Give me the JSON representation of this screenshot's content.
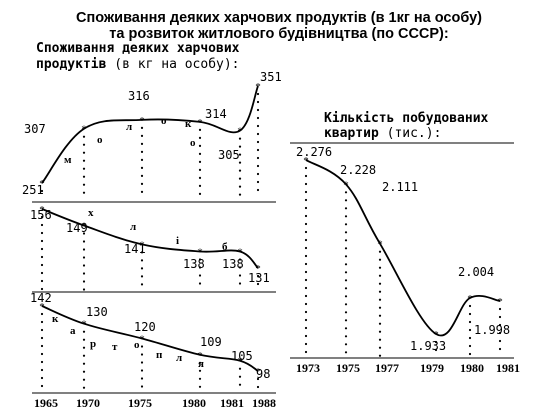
{
  "header": {
    "title_line1": "Споживання деяких харчових продуктів (в 1кг на особу)",
    "title_line2": "та розвиток житлового будівництва (по СССР):"
  },
  "left_panel": {
    "title_line1": "Споживання деяких харчових",
    "title_line2_bold": "продуктів",
    "title_line2_rest": " (в кг на особу):"
  },
  "right_panel": {
    "title_line1": "Кількість побудованих",
    "title_line2_bold": "квартир",
    "title_line2_rest": " (тис.):"
  },
  "colors": {
    "ink": "#000000",
    "background": "#ffffff"
  },
  "chart_data": [
    {
      "type": "line",
      "x": [
        "1965",
        "1970",
        "1975",
        "1980",
        "1981",
        "1988"
      ],
      "values": [
        251,
        307,
        316,
        314,
        305,
        351
      ],
      "curve_letters": [
        "м",
        "о",
        "л",
        "о",
        "к",
        "о"
      ]
    },
    {
      "type": "line",
      "x": [
        "1965",
        "1970",
        "1975",
        "1980",
        "1981",
        "1988"
      ],
      "values": [
        156,
        149,
        141,
        138,
        138,
        131
      ],
      "curve_letters": [
        "х",
        "л",
        "і",
        "б"
      ]
    },
    {
      "type": "line",
      "x": [
        "1965",
        "1970",
        "1975",
        "1980",
        "1981",
        "1988"
      ],
      "values": [
        142,
        130,
        120,
        109,
        105,
        98
      ],
      "curve_letters": [
        "к",
        "а",
        "р",
        "т",
        "о",
        "п",
        "л",
        "я"
      ]
    },
    {
      "type": "line",
      "x": [
        "1973",
        "1975",
        "1977",
        "1979",
        "1980",
        "1981"
      ],
      "values": [
        2.276,
        2.228,
        2.111,
        1.933,
        2.004,
        1.998
      ],
      "value_labels": [
        "2.276",
        "2.228",
        "2.111",
        "1.933",
        "2.004",
        "1.998"
      ]
    }
  ]
}
